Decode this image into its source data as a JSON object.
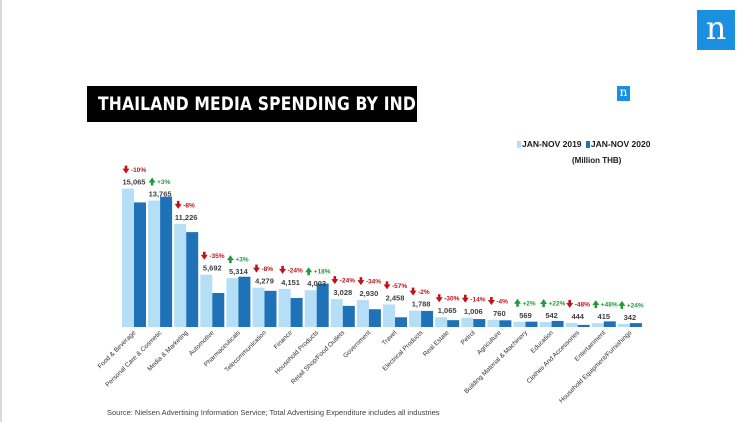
{
  "header": {
    "title": "THAILAND  MEDIA SPENDING BY INDUSTRY",
    "brand_mark": "n",
    "brand_mark_small": "n"
  },
  "legend": {
    "series_2019": "JAN-NOV 2019",
    "series_2020": "JAN-NOV 2020",
    "unit": "(Million THB)"
  },
  "source": "Source: Nielsen Advertising Information Service; Total Advertising Expenditure includes all industries",
  "colors": {
    "brand_blue": "#1b8fe0",
    "series_2019": "#b5dff6",
    "series_2020": "#1f72b8",
    "up": "#1e9c3a",
    "down": "#c0121a"
  },
  "chart_data": {
    "type": "bar",
    "title": "THAILAND  MEDIA SPENDING BY INDUSTRY",
    "ylabel": "",
    "xlabel": "",
    "ylim": [
      0,
      16000
    ],
    "grid": false,
    "legend_position": "top-right",
    "categories": [
      "Food & Beverage",
      "Personal Care & Cosmetic",
      "Media & Marketing",
      "Automotive",
      "Pharmaceuticals",
      "Telecommunication",
      "Finance",
      "Household Products",
      "Retail Shop/Food Outlets",
      "Government",
      "Travel",
      "Electrical Products",
      "Real Estate",
      "Petrol",
      "Agriculture",
      "Building Material & Machinery",
      "Education",
      "Clothes And Accessories",
      "Entertainment",
      "Household Equipment/Furnishings"
    ],
    "series": [
      {
        "name": "JAN-NOV 2019",
        "values": [
          15065,
          13765,
          11226,
          5692,
          5314,
          4279,
          4151,
          4003,
          3028,
          2930,
          2458,
          1788,
          1065,
          1006,
          760,
          569,
          542,
          444,
          415,
          342
        ],
        "labels": [
          "15,065",
          "13,765",
          "11,226",
          "5,692",
          "5,314",
          "4,279",
          "4,151",
          "4,003",
          "3,028",
          "2,930",
          "2,458",
          "1,788",
          "1,065",
          "1,006",
          "760",
          "569",
          "542",
          "444",
          "415",
          "342"
        ]
      },
      {
        "name": "JAN-NOV 2020",
        "values": [
          13559,
          14178,
          10328,
          3700,
          5473,
          3937,
          3155,
          4724,
          2301,
          1934,
          1057,
          1752,
          746,
          865,
          730,
          580,
          661,
          231,
          614,
          424
        ]
      }
    ],
    "changes": [
      "-10%",
      "+3%",
      "-8%",
      "-35%",
      "+3%",
      "-8%",
      "-24%",
      "+18%",
      "-24%",
      "-34%",
      "-57%",
      "-2%",
      "-30%",
      "-14%",
      "-4%",
      "+2%",
      "+22%",
      "-48%",
      "+48%",
      "+24%"
    ],
    "change_direction": [
      "down",
      "up",
      "down",
      "down",
      "up",
      "down",
      "down",
      "up",
      "down",
      "down",
      "down",
      "down",
      "down",
      "down",
      "down",
      "up",
      "up",
      "down",
      "up",
      "up"
    ]
  }
}
